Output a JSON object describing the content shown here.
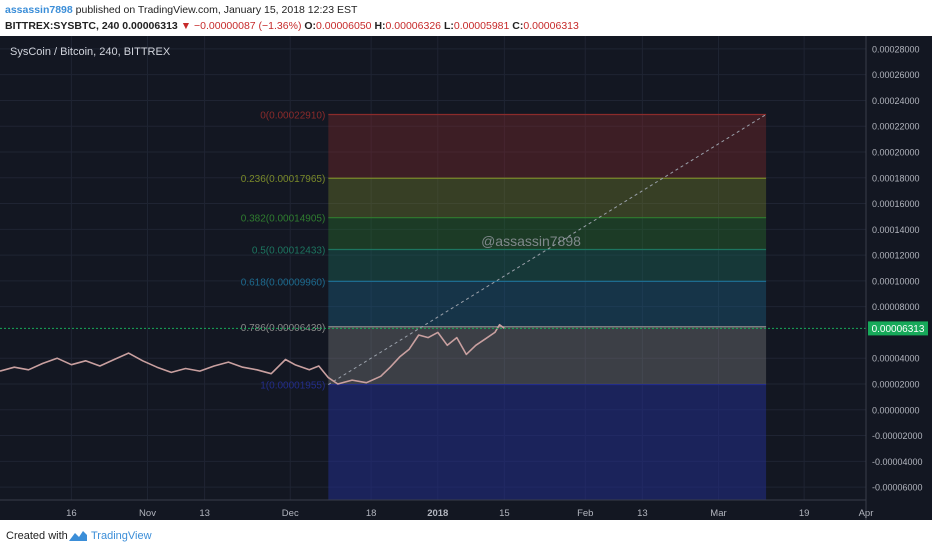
{
  "header": {
    "author": "assassin7898",
    "published_text": "published on TradingView.com, January 15, 2018 12:23 EST",
    "symbol": "BITTREX:SYSBTC, 240",
    "last": "0.00006313",
    "change": "−0.00000087 (−1.36%)",
    "open_label": "O:",
    "open": "0.00006050",
    "high_label": "H:",
    "high": "0.00006326",
    "low_label": "L:",
    "low": "0.00005981",
    "close_label": "C:",
    "close": "0.00006313",
    "down_arrow": "▼"
  },
  "colors": {
    "background": "#131722",
    "fib_0": "#8b2b2b",
    "fib_236": "#7a8a2a",
    "fib_382": "#2f7d2f",
    "fib_5": "#1d7560",
    "fib_618": "#1d6b8f",
    "fib_786": "#8a8a8a",
    "fib_1": "#232d8a",
    "candle": "#c9a0a0",
    "price_badge": "#17a95a"
  },
  "footer": {
    "created_with": "Created with",
    "brand": "TradingView"
  },
  "chart_data": {
    "type": "line",
    "title": "SysCoin / Bitcoin, 240, BITTREX",
    "watermark": "@assassin7898",
    "current_price_label": "0.00006313",
    "current_price": 6.313e-05,
    "ylim": [
      -7e-05,
      0.00029
    ],
    "y_ticks": [
      0.00028,
      0.00026,
      0.00024,
      0.00022,
      0.0002,
      0.00018,
      0.00016,
      0.00014,
      0.00012,
      0.0001,
      8e-05,
      4e-05,
      2e-05,
      0.0,
      -2e-05,
      -4e-05,
      -6e-05
    ],
    "y_tick_labels": [
      "0.00028000",
      "0.00026000",
      "0.00024000",
      "0.00022000",
      "0.00020000",
      "0.00018000",
      "0.00016000",
      "0.00014000",
      "0.00012000",
      "0.00010000",
      "0.00008000",
      "0.00004000",
      "0.00002000",
      "0.00000000",
      "-0.00002000",
      "-0.00004000",
      "-0.00006000"
    ],
    "x_tick_labels": [
      "16",
      "Nov",
      "13",
      "Dec",
      "18",
      "2018",
      "15",
      "Feb",
      "13",
      "Mar",
      "19",
      "Apr"
    ],
    "x_ticks": [
      "2017-10-16",
      "2017-11-01",
      "2017-11-13",
      "2017-12-01",
      "2017-12-18",
      "2018-01-01",
      "2018-01-15",
      "2018-02-01",
      "2018-02-13",
      "2018-03-01",
      "2018-03-19",
      "2018-04-01"
    ],
    "xlim": [
      "2017-10-01",
      "2018-04-01"
    ],
    "fib_start": "2017-12-09",
    "fib_end": "2018-03-11",
    "fib_levels": [
      {
        "ratio": "0",
        "price": 0.0002291,
        "label": "0(0.00022910)"
      },
      {
        "ratio": "0.236",
        "price": 0.00017965,
        "label": "0.236(0.00017965)"
      },
      {
        "ratio": "0.382",
        "price": 0.00014905,
        "label": "0.382(0.00014905)"
      },
      {
        "ratio": "0.5",
        "price": 0.00012433,
        "label": "0.5(0.00012433)"
      },
      {
        "ratio": "0.618",
        "price": 9.96e-05,
        "label": "0.618(0.00009960)"
      },
      {
        "ratio": "0.786",
        "price": 6.439e-05,
        "label": "0.786(0.00006439)"
      },
      {
        "ratio": "1",
        "price": 1.955e-05,
        "label": "1(0.00001955)"
      }
    ],
    "trend_line": {
      "start": [
        "2017-12-09",
        1.955e-05
      ],
      "end": [
        "2018-03-11",
        0.0002291
      ]
    },
    "series": [
      {
        "values": [
          [
            "2017-10-01",
            3e-05
          ],
          [
            "2017-10-04",
            3.3e-05
          ],
          [
            "2017-10-07",
            3.1e-05
          ],
          [
            "2017-10-10",
            3.6e-05
          ],
          [
            "2017-10-13",
            4e-05
          ],
          [
            "2017-10-16",
            3.5e-05
          ],
          [
            "2017-10-19",
            3.8e-05
          ],
          [
            "2017-10-22",
            3.4e-05
          ],
          [
            "2017-10-25",
            3.9e-05
          ],
          [
            "2017-10-28",
            4.4e-05
          ],
          [
            "2017-10-31",
            3.8e-05
          ],
          [
            "2017-11-03",
            3.3e-05
          ],
          [
            "2017-11-06",
            2.9e-05
          ],
          [
            "2017-11-09",
            3.2e-05
          ],
          [
            "2017-11-12",
            3e-05
          ],
          [
            "2017-11-15",
            3.4e-05
          ],
          [
            "2017-11-18",
            3.7e-05
          ],
          [
            "2017-11-21",
            3.3e-05
          ],
          [
            "2017-11-24",
            3.1e-05
          ],
          [
            "2017-11-27",
            2.8e-05
          ],
          [
            "2017-11-30",
            3.9e-05
          ],
          [
            "2017-12-02",
            3.5e-05
          ],
          [
            "2017-12-05",
            3.1e-05
          ],
          [
            "2017-12-07",
            3.4e-05
          ],
          [
            "2017-12-09",
            2.5e-05
          ],
          [
            "2017-12-11",
            2e-05
          ],
          [
            "2017-12-14",
            2.3e-05
          ],
          [
            "2017-12-17",
            2.1e-05
          ],
          [
            "2017-12-20",
            2.6e-05
          ],
          [
            "2017-12-22",
            3.3e-05
          ],
          [
            "2017-12-24",
            4.1e-05
          ],
          [
            "2017-12-26",
            4.7e-05
          ],
          [
            "2017-12-28",
            5.8e-05
          ],
          [
            "2017-12-30",
            5.6e-05
          ],
          [
            "2018-01-01",
            6e-05
          ],
          [
            "2018-01-03",
            5e-05
          ],
          [
            "2018-01-05",
            5.6e-05
          ],
          [
            "2018-01-07",
            4.3e-05
          ],
          [
            "2018-01-09",
            5e-05
          ],
          [
            "2018-01-11",
            5.5e-05
          ],
          [
            "2018-01-13",
            6e-05
          ],
          [
            "2018-01-14",
            6.6e-05
          ],
          [
            "2018-01-15",
            6.313e-05
          ]
        ]
      }
    ]
  }
}
